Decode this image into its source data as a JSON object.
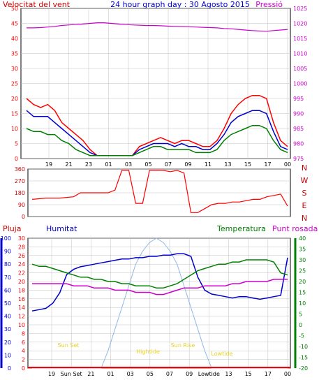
{
  "header": {
    "left_label": "Velocitat del vent",
    "title": "24 hour graph day : 30 Agosto 2015",
    "right_label": "Pressió"
  },
  "colors": {
    "red": "#ff0000",
    "blue": "#0000cc",
    "green": "#008000",
    "magenta": "#cc00cc",
    "darkred": "#cc0000",
    "sun": "#8fb8e8",
    "yellow": "#e8d020",
    "grid": "#c0c0c0",
    "bg": "#ffffff",
    "frame": "#000000"
  },
  "wind_chart": {
    "type": "line",
    "left_ticks": [
      "0",
      "5",
      "10",
      "15",
      "20",
      "25",
      "30",
      "35",
      "40",
      "45",
      "50"
    ],
    "right_ticks": [
      "975",
      "980",
      "985",
      "990",
      "995",
      "1000",
      "1005",
      "1010",
      "1015",
      "1020",
      "1025"
    ],
    "x_ticks": [
      "19",
      "21",
      "23",
      "01",
      "03",
      "05",
      "07",
      "09",
      "11",
      "13",
      "15",
      "17",
      "00"
    ],
    "series": [
      {
        "color_key": "red",
        "description": "gust",
        "values": [
          20,
          18,
          17,
          18,
          16,
          12,
          10,
          8,
          6,
          3,
          1,
          1,
          1,
          1,
          1,
          1,
          4,
          5,
          6,
          7,
          6,
          5,
          6,
          6,
          5,
          4,
          4,
          6,
          10,
          15,
          18,
          20,
          21,
          21,
          20,
          12,
          6,
          4
        ]
      },
      {
        "color_key": "blue",
        "description": "average",
        "values": [
          16,
          14,
          14,
          14,
          12,
          10,
          8,
          6,
          4,
          2,
          1,
          1,
          1,
          1,
          1,
          1,
          3,
          4,
          5,
          5,
          5,
          4,
          5,
          4,
          4,
          3,
          3,
          5,
          8,
          12,
          14,
          15,
          16,
          16,
          15,
          9,
          4,
          3
        ]
      },
      {
        "color_key": "green",
        "description": "speed",
        "values": [
          10,
          9,
          9,
          8,
          8,
          6,
          5,
          3,
          2,
          1,
          1,
          1,
          1,
          1,
          1,
          1,
          2,
          3,
          4,
          4,
          3,
          3,
          3,
          3,
          2,
          2,
          2,
          3,
          6,
          8,
          9,
          10,
          11,
          11,
          10,
          6,
          3,
          2
        ]
      },
      {
        "color_key": "magenta",
        "description": "pressure",
        "values": [
          1018.5,
          1018.5,
          1018.6,
          1018.8,
          1019.0,
          1019.3,
          1019.5,
          1019.6,
          1019.8,
          1020.0,
          1020.2,
          1020.2,
          1020.0,
          1019.8,
          1019.6,
          1019.5,
          1019.4,
          1019.3,
          1019.3,
          1019.2,
          1019.1,
          1019.0,
          1019.0,
          1018.9,
          1018.8,
          1018.7,
          1018.6,
          1018.5,
          1018.3,
          1018.2,
          1018.0,
          1017.8,
          1017.6,
          1017.5,
          1017.4,
          1017.6,
          1017.8,
          1018.0
        ]
      }
    ]
  },
  "dir_chart": {
    "type": "line",
    "left_ticks": [
      "0",
      "90",
      "180",
      "270",
      "360"
    ],
    "right_labels": [
      "N",
      "W",
      "S",
      "E",
      "N"
    ],
    "values": [
      130,
      135,
      140,
      140,
      140,
      145,
      150,
      180,
      180,
      180,
      180,
      180,
      200,
      350,
      350,
      100,
      100,
      350,
      350,
      350,
      340,
      350,
      330,
      30,
      30,
      60,
      90,
      100,
      100,
      110,
      110,
      120,
      130,
      130,
      150,
      160,
      170,
      80
    ]
  },
  "bottom_chart": {
    "labels": {
      "left1": "Pluja",
      "left2": "Humitat",
      "right1": "Temperatura",
      "right2": "Punt rosada"
    },
    "rain_ticks": [
      "0",
      "2",
      "4",
      "6",
      "8",
      "10",
      "12",
      "14",
      "16",
      "18",
      "20",
      "22",
      "24",
      "26",
      "28",
      "30"
    ],
    "hum_ticks": [
      "0",
      "10",
      "20",
      "30",
      "40",
      "50",
      "60",
      "70",
      "80",
      "90",
      "100"
    ],
    "temp_ticks": [
      "-20",
      "-15",
      "-10",
      "-5",
      "0",
      "5",
      "10",
      "15",
      "20",
      "25",
      "30",
      "35",
      "40"
    ],
    "x_ticks": [
      "19",
      "Sun Set",
      "21",
      "01",
      "03",
      "05",
      "07",
      "09",
      "Lowtide",
      "13",
      "15",
      "17",
      "00"
    ],
    "annotations": [
      "Sun Set",
      "Hightide",
      "Sun Rise",
      "Lowtide"
    ],
    "series": [
      {
        "color_key": "blue",
        "description": "humitat",
        "values": [
          44,
          45,
          46,
          50,
          58,
          72,
          76,
          78,
          79,
          80,
          81,
          82,
          83,
          84,
          84,
          85,
          85,
          86,
          86,
          87,
          87,
          88,
          88,
          86,
          70,
          60,
          57,
          56,
          55,
          54,
          55,
          55,
          54,
          53,
          54,
          55,
          56,
          85
        ]
      },
      {
        "color_key": "green",
        "description": "temperatura",
        "values": [
          28,
          27,
          27,
          26,
          25,
          24,
          23,
          22,
          22,
          21,
          21,
          20,
          20,
          19,
          19,
          18,
          18,
          18,
          17,
          17,
          18,
          19,
          21,
          23,
          25,
          26,
          27,
          28,
          28,
          29,
          29,
          30,
          30,
          30,
          30,
          29,
          24,
          23
        ]
      },
      {
        "color_key": "magenta",
        "description": "punt rosada",
        "values": [
          19,
          19,
          19,
          19,
          19,
          19,
          18,
          18,
          18,
          17,
          17,
          17,
          16,
          16,
          16,
          15,
          15,
          15,
          14,
          14,
          15,
          16,
          17,
          17,
          17,
          18,
          18,
          18,
          18,
          19,
          19,
          20,
          20,
          20,
          20,
          21,
          21,
          21
        ]
      },
      {
        "color_key": "sun",
        "description": "solar",
        "values": [
          0,
          0,
          0,
          0,
          0,
          0,
          0,
          0,
          0,
          0,
          0,
          4,
          9,
          14,
          19,
          24,
          27,
          29,
          30,
          29,
          27,
          24,
          19,
          14,
          9,
          4,
          0,
          0,
          0,
          0,
          0,
          0,
          0,
          0,
          0,
          0,
          0,
          0
        ]
      }
    ]
  }
}
